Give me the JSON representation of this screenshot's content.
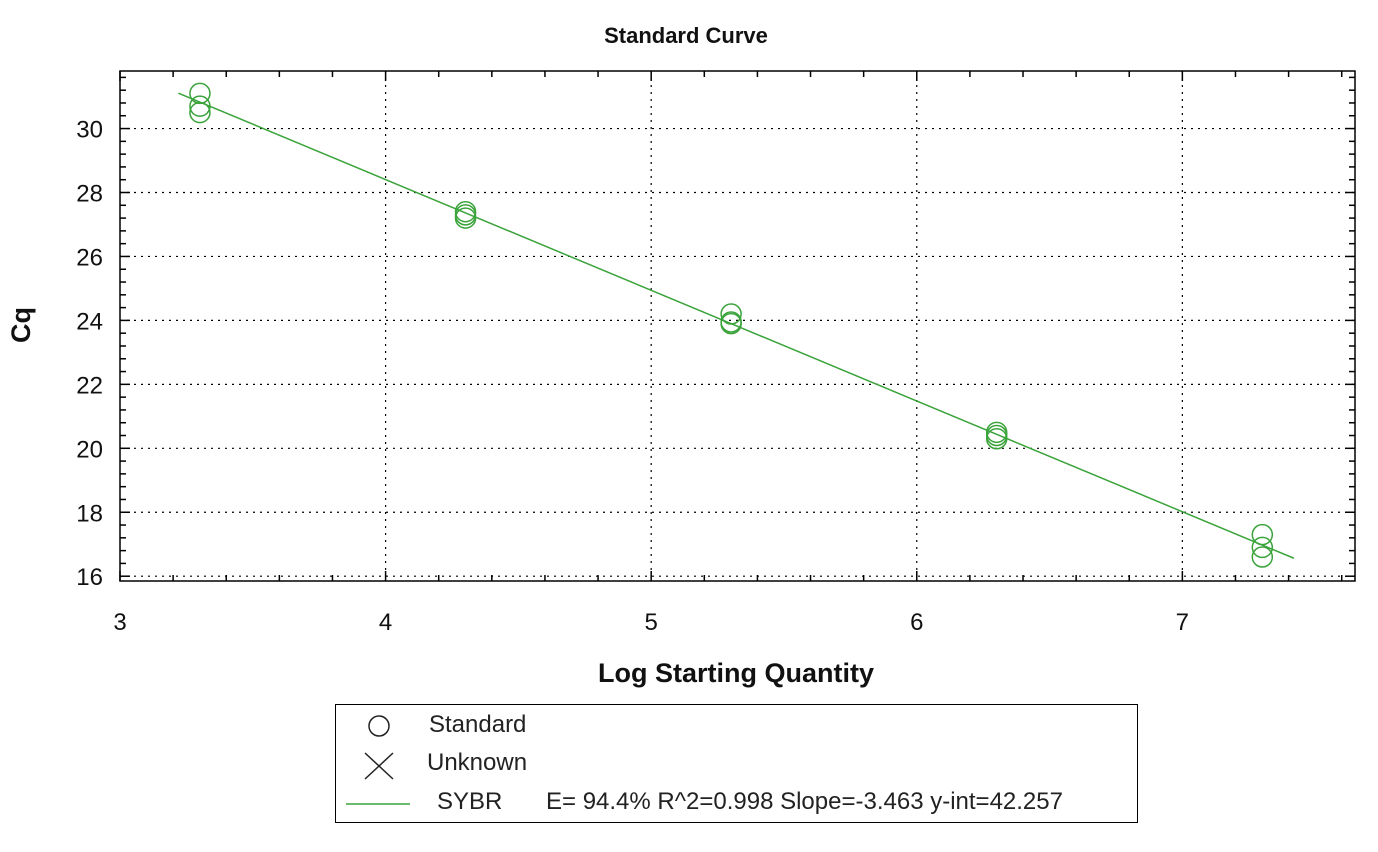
{
  "chart_data": {
    "type": "scatter",
    "title": "Standard Curve",
    "xlabel": "Log Starting Quantity",
    "ylabel": "Cq",
    "xlim": [
      3,
      7.65
    ],
    "ylim": [
      15.85,
      31.8
    ],
    "xticks": [
      3,
      4,
      5,
      6,
      7
    ],
    "yticks": [
      16,
      18,
      20,
      22,
      24,
      26,
      28,
      30
    ],
    "grid": true,
    "series": [
      {
        "name": "Standard",
        "marker": "circle",
        "color": "#3aa33a",
        "points": [
          {
            "x": 3.301,
            "y": 31.1
          },
          {
            "x": 3.301,
            "y": 30.7
          },
          {
            "x": 3.301,
            "y": 30.5
          },
          {
            "x": 4.301,
            "y": 27.4
          },
          {
            "x": 4.301,
            "y": 27.3
          },
          {
            "x": 4.301,
            "y": 27.2
          },
          {
            "x": 5.301,
            "y": 24.2
          },
          {
            "x": 5.301,
            "y": 23.95
          },
          {
            "x": 5.301,
            "y": 23.9
          },
          {
            "x": 6.301,
            "y": 20.5
          },
          {
            "x": 6.301,
            "y": 20.4
          },
          {
            "x": 6.301,
            "y": 20.3
          },
          {
            "x": 7.301,
            "y": 17.3
          },
          {
            "x": 7.301,
            "y": 16.9
          },
          {
            "x": 7.301,
            "y": 16.6
          }
        ]
      },
      {
        "name": "Unknown",
        "marker": "x",
        "color": "#000000",
        "points": []
      }
    ],
    "fit_line": {
      "name": "SYBR",
      "color": "#3aa33a",
      "slope": -3.463,
      "intercept": 42.257,
      "x_range": [
        3.22,
        7.42
      ]
    },
    "legend_placement": "bottom"
  },
  "legend": {
    "standard_label": "Standard",
    "unknown_label": "Unknown",
    "sybr_label": "SYBR",
    "sybr_stats": "E= 94.4% R^2=0.998 Slope=-3.463 y-int=42.257"
  },
  "colors": {
    "series": "#3aa33a",
    "axis": "#000000",
    "grid": "#000000"
  }
}
